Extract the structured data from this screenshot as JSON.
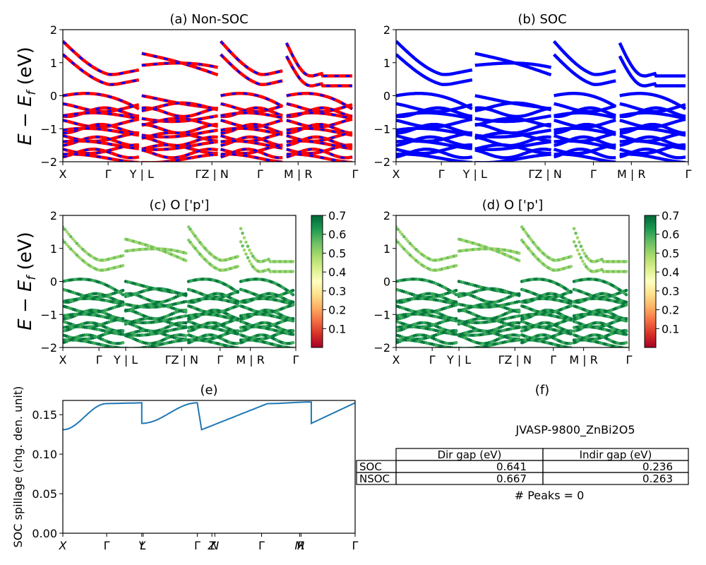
{
  "panels": {
    "a": {
      "title": "(a) Non-SOC"
    },
    "b": {
      "title": "(b) SOC"
    },
    "c": {
      "title": "(c)  O ['p']"
    },
    "d": {
      "title": "(d) O ['p']"
    },
    "e": {
      "title": "(e)"
    },
    "f": {
      "title": "(f)"
    }
  },
  "band_axes": {
    "ylabel_math": "E − E",
    "ylabel_sub": "f",
    "ylabel_unit": " (eV)",
    "ylim": [
      -2,
      2
    ],
    "yticks": [
      "2",
      "1",
      "0",
      "−1",
      "−2"
    ],
    "xticks_top": [
      "X",
      "Γ",
      "Y | L",
      "ΓZ | N",
      "Γ",
      "M | R",
      "Γ"
    ],
    "xticks_mid": [
      "X",
      "Γ",
      "Y | L",
      "ΓZ | N",
      "Γ",
      "M | R",
      "Γ"
    ],
    "xticks_mid_right": [
      "X",
      "Γ",
      "Y | L",
      "ΓZ | N",
      "Γ",
      "M | R",
      "Γ"
    ]
  },
  "colorbar": {
    "ticks": [
      "0.1",
      "0.2",
      "0.3",
      "0.4",
      "0.5",
      "0.6",
      "0.7"
    ],
    "range": [
      0.0,
      0.7
    ],
    "colors": [
      "#a50026",
      "#d73027",
      "#f46d43",
      "#fdae61",
      "#fee08b",
      "#ffffbf",
      "#d9ef8b",
      "#a6d96a",
      "#66bd63",
      "#1a9850",
      "#006837"
    ]
  },
  "colors": {
    "nonsoc_band": "#ff0000",
    "nonsoc_dash": "#0000ff",
    "soc_band": "#0000ff",
    "spillage_line": "#1f77b4"
  },
  "chart_data": [
    {
      "type": "line",
      "panel": "a",
      "title": "(a) Non-SOC",
      "ylim": [
        -2,
        2
      ],
      "x_labels": [
        "X",
        "Γ",
        "Y | L",
        "ΓZ | N",
        "Γ",
        "M | R",
        "Γ"
      ],
      "conduction_band_edges_eV": [
        1.65,
        1.25,
        0.6,
        0.3,
        1.3,
        1.05,
        0.65,
        1.6,
        1.2,
        0.6,
        0.3,
        1.35
      ],
      "valence_band_top_eV": 0.0
    },
    {
      "type": "line",
      "panel": "b",
      "title": "(b) SOC",
      "ylim": [
        -2,
        2
      ],
      "x_labels": [
        "X",
        "Γ",
        "Y | L",
        "ΓZ | N",
        "Γ",
        "M | R",
        "Γ"
      ],
      "valence_band_top_eV": 0.0
    },
    {
      "type": "scatter",
      "panel": "c",
      "title": "(c)  O ['p']",
      "ylim": [
        -2,
        2
      ],
      "colorbar_range": [
        0.0,
        0.7
      ]
    },
    {
      "type": "scatter",
      "panel": "d",
      "title": "(d) O ['p']",
      "ylim": [
        -2,
        2
      ],
      "colorbar_range": [
        0.0,
        0.7
      ]
    },
    {
      "type": "line",
      "panel": "e",
      "title": "(e)",
      "ylabel": "SOC spillage (chg. den. unit)",
      "ylim": [
        0.0,
        0.168
      ],
      "yticks": [
        "0.00",
        "0.05",
        "0.10",
        "0.15"
      ],
      "xticks": [
        "X",
        "Γ",
        "Y",
        "L",
        "Γ",
        "Z",
        "N",
        "Γ",
        "M",
        "R",
        "Γ"
      ],
      "segments": [
        {
          "x": [
            0.0,
            0.3
          ],
          "y": [
            0.131,
            0.164
          ]
        },
        {
          "x": [
            0.3,
            0.54
          ],
          "y": [
            0.164,
            0.165
          ]
        },
        {
          "x": [
            0.54,
            0.92
          ],
          "y": [
            0.139,
            0.165
          ]
        },
        {
          "x": [
            0.95,
            1.4
          ],
          "y": [
            0.131,
            0.164
          ]
        },
        {
          "x": [
            1.4,
            1.7
          ],
          "y": [
            0.164,
            0.166
          ]
        },
        {
          "x": [
            1.7,
            2.0
          ],
          "y": [
            0.139,
            0.165
          ]
        }
      ]
    }
  ],
  "table": {
    "id": "JVASP-9800_ZnBi2O5",
    "headers": [
      "Dir gap (eV)",
      "Indir gap (eV)"
    ],
    "rows": [
      {
        "label": "SOC",
        "dir": "0.641",
        "indir": "0.236"
      },
      {
        "label": "NSOC",
        "dir": "0.667",
        "indir": "0.263"
      }
    ],
    "peaks": "# Peaks = 0"
  },
  "spillage_axes": {
    "ylabel": "SOC spillage (chg. den. unit)",
    "yticks": [
      "0.00",
      "0.05",
      "0.10",
      "0.15"
    ],
    "xticks": [
      "X",
      "Γ",
      "Y",
      "L",
      "Γ",
      "Z",
      "N",
      "Γ",
      "M",
      "R",
      "Γ"
    ]
  }
}
